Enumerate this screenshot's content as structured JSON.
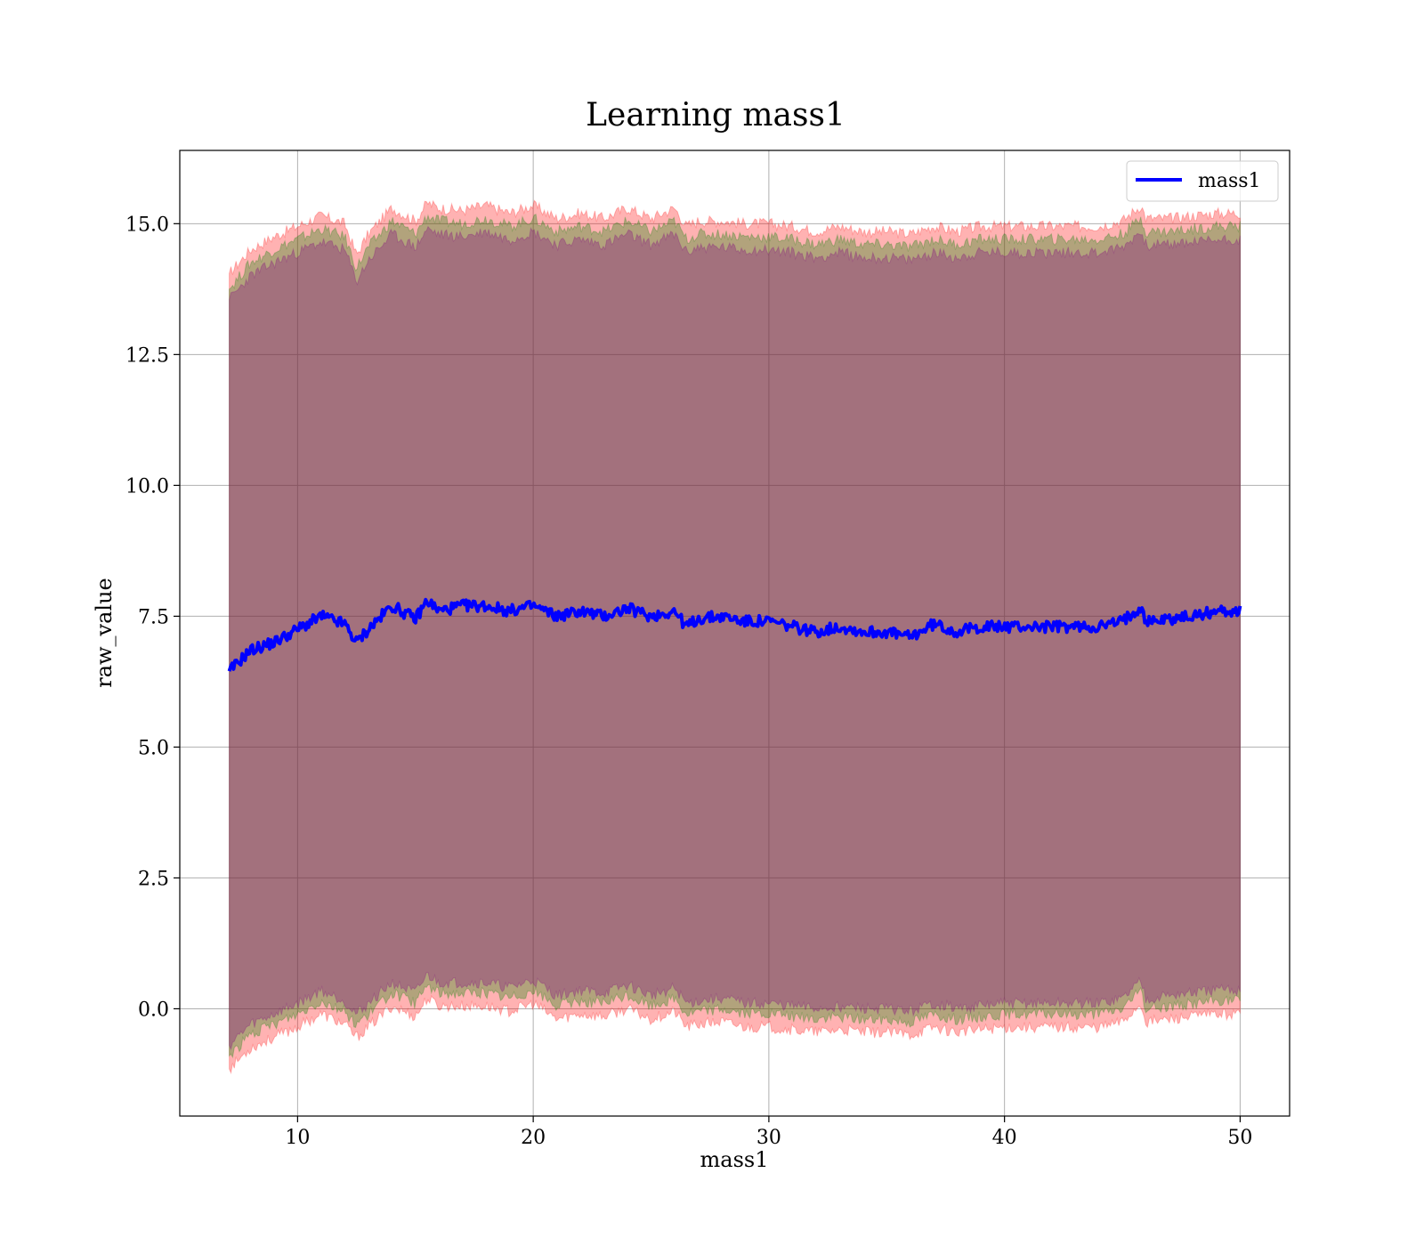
{
  "chart_data": {
    "type": "area",
    "title": "Learning mass1",
    "xlabel": "mass1",
    "ylabel": "raw_value",
    "xlim": [
      5,
      52.1
    ],
    "ylim": [
      -2.05,
      16.4
    ],
    "xticks": [
      10,
      20,
      30,
      40,
      50
    ],
    "yticks": [
      0.0,
      2.5,
      5.0,
      7.5,
      10.0,
      12.5,
      15.0
    ],
    "grid": true,
    "legend_position": "top-right",
    "x": [
      7.1,
      8,
      9,
      10,
      11,
      12,
      12.5,
      13,
      14,
      15,
      15.5,
      16,
      17,
      18,
      19,
      20,
      21,
      22,
      23,
      24,
      25,
      26,
      26.5,
      27,
      28,
      29,
      30,
      31,
      32,
      33,
      34,
      35,
      36,
      37,
      38,
      39,
      40,
      41,
      42,
      43,
      44,
      45,
      45.8,
      46,
      47,
      48,
      49,
      50
    ],
    "series": [
      {
        "name": "mass1",
        "color": "#0000ff",
        "values": [
          6.45,
          6.85,
          7.0,
          7.25,
          7.5,
          7.35,
          7.0,
          7.25,
          7.7,
          7.45,
          7.8,
          7.6,
          7.7,
          7.7,
          7.6,
          7.7,
          7.5,
          7.6,
          7.5,
          7.65,
          7.5,
          7.6,
          7.3,
          7.45,
          7.5,
          7.4,
          7.4,
          7.3,
          7.2,
          7.3,
          7.2,
          7.2,
          7.1,
          7.35,
          7.2,
          7.3,
          7.3,
          7.3,
          7.3,
          7.3,
          7.3,
          7.4,
          7.7,
          7.4,
          7.45,
          7.5,
          7.6,
          7.6
        ]
      }
    ],
    "bands": [
      {
        "color": "#ff0000",
        "opacity": 0.3,
        "upper": [
          14.05,
          14.5,
          14.75,
          14.95,
          15.15,
          15.0,
          14.4,
          14.8,
          15.3,
          15.05,
          15.4,
          15.3,
          15.25,
          15.35,
          15.2,
          15.35,
          15.1,
          15.2,
          15.1,
          15.3,
          15.1,
          15.3,
          14.95,
          15.05,
          15.05,
          15.0,
          15.0,
          14.95,
          14.85,
          14.95,
          14.85,
          14.85,
          14.8,
          14.95,
          14.85,
          14.95,
          14.95,
          14.95,
          14.95,
          14.95,
          14.95,
          15.05,
          15.35,
          15.1,
          15.1,
          15.15,
          15.2,
          15.2
        ],
        "lower": [
          -1.15,
          -0.75,
          -0.55,
          -0.35,
          -0.1,
          -0.3,
          -0.55,
          -0.35,
          0.05,
          -0.15,
          0.2,
          0.05,
          0.05,
          0.05,
          -0.05,
          0.1,
          -0.2,
          -0.1,
          -0.15,
          0.0,
          -0.2,
          -0.05,
          -0.35,
          -0.3,
          -0.25,
          -0.35,
          -0.35,
          -0.4,
          -0.45,
          -0.4,
          -0.45,
          -0.45,
          -0.5,
          -0.35,
          -0.45,
          -0.4,
          -0.35,
          -0.35,
          -0.35,
          -0.35,
          -0.35,
          -0.25,
          0.1,
          -0.25,
          -0.2,
          -0.15,
          -0.1,
          -0.1
        ]
      },
      {
        "color": "#008000",
        "opacity": 0.3,
        "upper": [
          13.75,
          14.25,
          14.5,
          14.7,
          14.9,
          14.75,
          14.15,
          14.55,
          15.05,
          14.8,
          15.15,
          15.05,
          15.0,
          15.1,
          14.95,
          15.1,
          14.85,
          14.95,
          14.85,
          15.05,
          14.85,
          15.05,
          14.7,
          14.8,
          14.8,
          14.75,
          14.75,
          14.7,
          14.6,
          14.7,
          14.6,
          14.6,
          14.55,
          14.7,
          14.6,
          14.7,
          14.7,
          14.7,
          14.7,
          14.7,
          14.7,
          14.8,
          15.1,
          14.85,
          14.85,
          14.9,
          14.95,
          14.95
        ],
        "lower": [
          -0.9,
          -0.5,
          -0.3,
          -0.1,
          0.15,
          -0.05,
          -0.3,
          -0.1,
          0.3,
          0.1,
          0.45,
          0.3,
          0.3,
          0.3,
          0.2,
          0.35,
          0.05,
          0.15,
          0.1,
          0.25,
          0.05,
          0.2,
          -0.1,
          -0.05,
          0.0,
          -0.1,
          -0.1,
          -0.15,
          -0.2,
          -0.15,
          -0.2,
          -0.2,
          -0.25,
          -0.1,
          -0.2,
          -0.15,
          -0.1,
          -0.1,
          -0.1,
          -0.1,
          -0.1,
          0.0,
          0.35,
          0.0,
          0.05,
          0.1,
          0.15,
          0.15
        ]
      },
      {
        "color": "#800080",
        "opacity": 0.3,
        "upper": [
          13.55,
          14.0,
          14.25,
          14.45,
          14.65,
          14.5,
          13.9,
          14.3,
          14.8,
          14.55,
          14.9,
          14.8,
          14.75,
          14.85,
          14.7,
          14.85,
          14.6,
          14.7,
          14.6,
          14.8,
          14.6,
          14.8,
          14.45,
          14.55,
          14.55,
          14.5,
          14.5,
          14.45,
          14.35,
          14.45,
          14.35,
          14.35,
          14.3,
          14.45,
          14.35,
          14.45,
          14.45,
          14.45,
          14.45,
          14.45,
          14.45,
          14.55,
          14.85,
          14.6,
          14.6,
          14.65,
          14.7,
          14.7
        ],
        "lower": [
          -0.7,
          -0.3,
          -0.1,
          0.1,
          0.35,
          0.15,
          -0.1,
          0.1,
          0.5,
          0.3,
          0.65,
          0.5,
          0.5,
          0.5,
          0.4,
          0.55,
          0.25,
          0.35,
          0.3,
          0.45,
          0.25,
          0.4,
          0.1,
          0.15,
          0.2,
          0.1,
          0.1,
          0.05,
          0.0,
          0.05,
          0.0,
          0.0,
          -0.05,
          0.1,
          0.0,
          0.05,
          0.1,
          0.1,
          0.1,
          0.1,
          0.1,
          0.2,
          0.55,
          0.2,
          0.25,
          0.3,
          0.35,
          0.35
        ]
      }
    ]
  }
}
